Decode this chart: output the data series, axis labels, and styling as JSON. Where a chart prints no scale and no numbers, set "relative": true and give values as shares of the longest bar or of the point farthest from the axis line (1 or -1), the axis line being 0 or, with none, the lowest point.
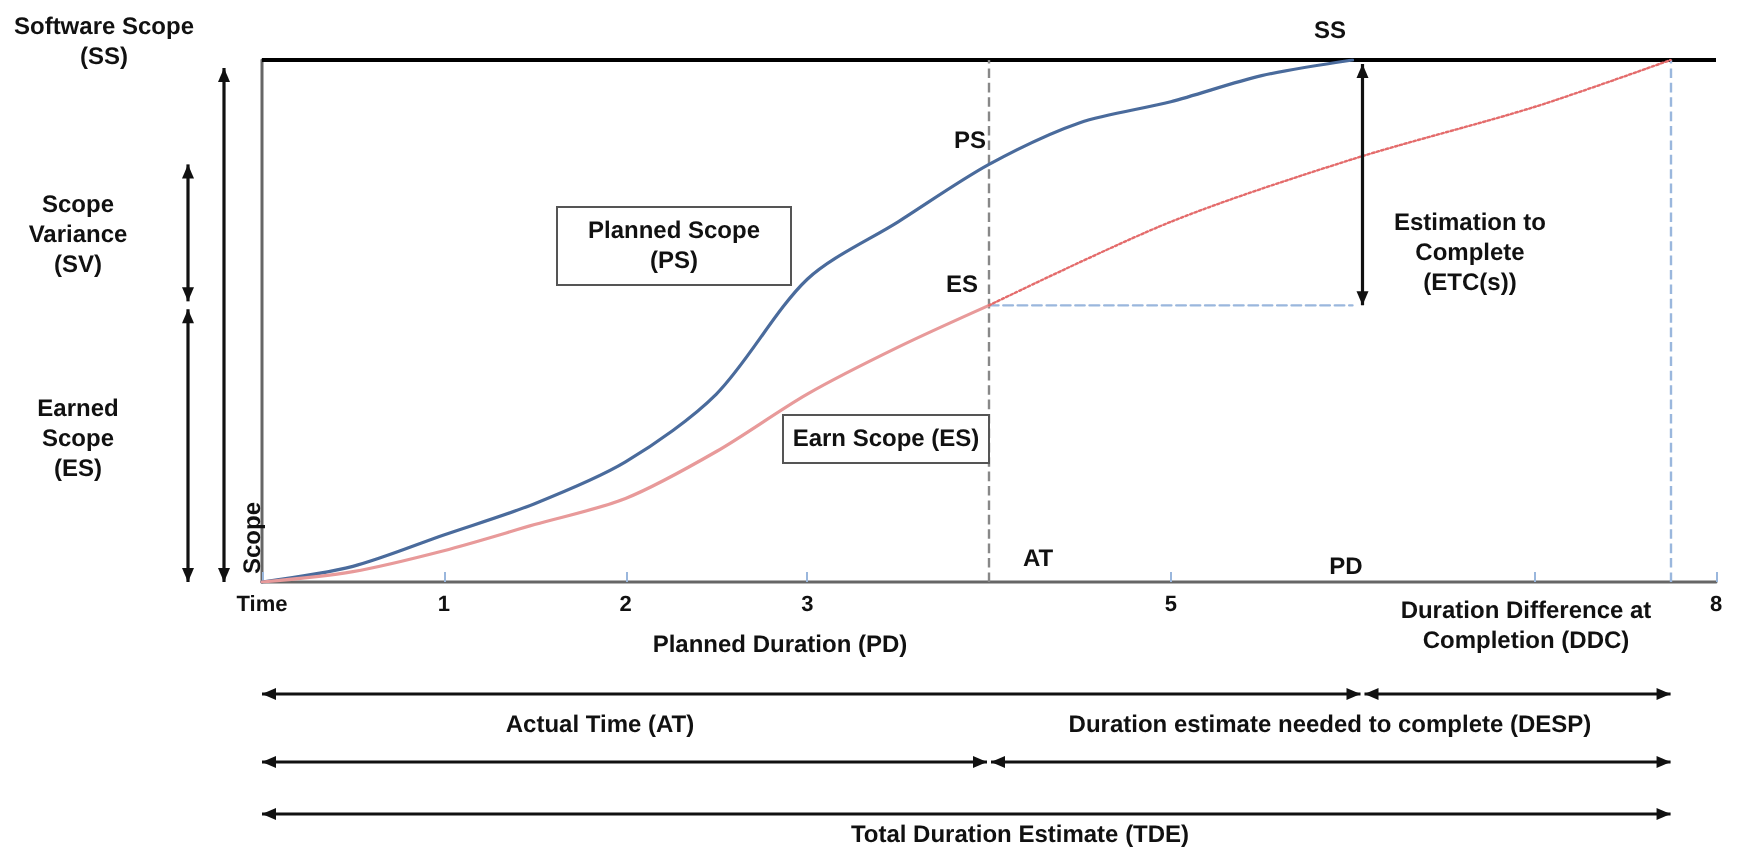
{
  "chart_data": {
    "type": "line",
    "relative": true,
    "xlabel": "Planned Duration (PD)",
    "ylabel": "Scope",
    "xlim": [
      0,
      8
    ],
    "xticks": [
      {
        "value": 0,
        "label": "Time"
      },
      1,
      2,
      3,
      5,
      {
        "value": 7,
        "label": null
      },
      8
    ],
    "series": [
      {
        "color": "#4a6b9c",
        "line_style": "solid",
        "x": [
          0,
          0.5,
          1,
          1.5,
          2,
          2.5,
          3,
          3.5,
          4,
          4.5,
          5,
          5.5,
          6
        ],
        "values": [
          0,
          0.03,
          0.09,
          0.15,
          0.23,
          0.36,
          0.58,
          0.69,
          0.8,
          0.88,
          0.92,
          0.97,
          1
        ]
      },
      {
        "color": "#e89a9a",
        "line_style": "solid",
        "x": [
          0,
          0.5,
          1,
          1.5,
          2,
          2.5,
          3,
          3.5,
          4
        ],
        "values": [
          0,
          0.02,
          0.06,
          0.11,
          0.16,
          0.25,
          0.36,
          0.45,
          0.53
        ]
      },
      {
        "color": "#e46c6c",
        "line_style": "dotted",
        "x": [
          4,
          5,
          6,
          7,
          7.75
        ],
        "values": [
          0.53,
          0.69,
          0.81,
          0.91,
          1
        ]
      },
      {
        "color": "#9ab7dd",
        "line_style": "dashed",
        "x": [
          4,
          6
        ],
        "values": [
          0.53,
          0.53
        ]
      }
    ],
    "ref_lines": [
      {
        "axis": "y",
        "value": 1,
        "label": "Software Scope (SS)",
        "color": "#000000",
        "line_style": "solid"
      },
      {
        "axis": "x",
        "value": 4,
        "color": "#888888",
        "line_style": "dashed"
      },
      {
        "axis": "x",
        "value": 7.75,
        "color": "#9ab7dd",
        "line_style": "dashed"
      }
    ],
    "annotations": [
      "SS",
      "PS",
      "ES",
      "AT",
      "PD",
      "Planned Scope (PS)",
      "Earn Scope (ES)",
      "Estimation to Complete (ETC(s))",
      "Scope Variance (SV)",
      "Earned Scope (ES)",
      "Duration Difference at Completion (DDC)",
      "Actual Time (AT)",
      "Duration estimate needed to complete (DESP)",
      "Total Duration Estimate (TDE)"
    ],
    "grid": false,
    "marker": "none"
  }
}
